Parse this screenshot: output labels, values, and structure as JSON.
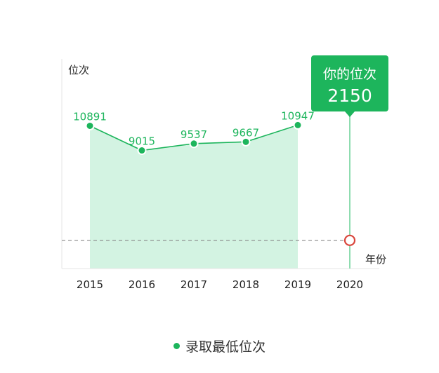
{
  "chart_data": {
    "type": "area",
    "ylabel": "位次",
    "xlabel": "年份",
    "categories": [
      "2015",
      "2016",
      "2017",
      "2018",
      "2019",
      "2020"
    ],
    "series": [
      {
        "name": "录取最低位次",
        "x": [
          "2015",
          "2016",
          "2017",
          "2018",
          "2019"
        ],
        "values": [
          10891,
          9015,
          9537,
          9667,
          10947
        ],
        "labels": [
          "10891",
          "9015",
          "9537",
          "9667",
          "10947"
        ]
      }
    ],
    "your_rank": {
      "year": "2020",
      "value": 2150,
      "title": "你的位次",
      "value_label": "2150"
    },
    "ylim": [
      0,
      16000
    ],
    "grid": false,
    "legend_position": "bottom"
  },
  "colors": {
    "accent": "#1db55c",
    "area_fill": "#d3f3e2",
    "marker_red": "#d9453b",
    "dashed_line": "#888888"
  }
}
